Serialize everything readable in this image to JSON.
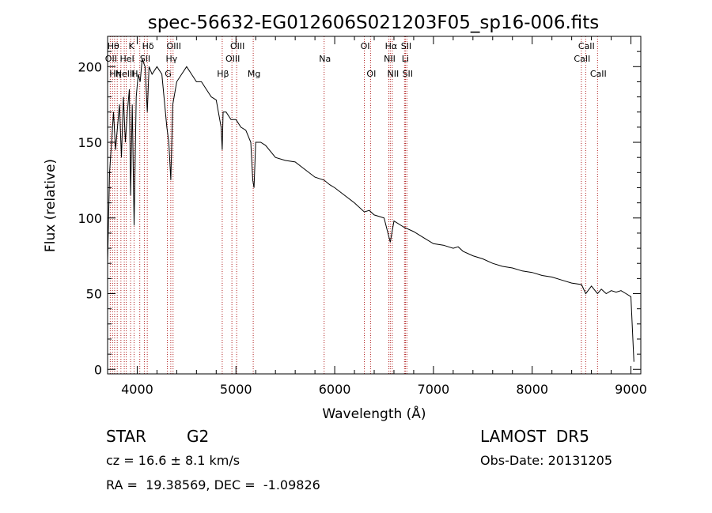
{
  "chart_data": {
    "type": "line",
    "title": "spec-56632-EG012606S021203F05_sp16-006.fits",
    "xlabel": "Wavelength (Å)",
    "ylabel": "Flux (relative)",
    "xlim": [
      3700,
      9100
    ],
    "ylim": [
      -3,
      220
    ],
    "x_ticks": [
      4000,
      5000,
      6000,
      7000,
      8000,
      9000
    ],
    "y_ticks": [
      0,
      50,
      100,
      150,
      200
    ],
    "grid": false,
    "line_color": "#000000",
    "marker_color": "#b22222",
    "series": [
      {
        "x": [
          3700,
          3720,
          3740,
          3760,
          3780,
          3800,
          3820,
          3840,
          3860,
          3880,
          3900,
          3920,
          3933,
          3950,
          3968,
          3990,
          4010,
          4030,
          4050,
          4080,
          4102,
          4120,
          4150,
          4200,
          4250,
          4300,
          4320,
          4340,
          4360,
          4400,
          4450,
          4500,
          4550,
          4600,
          4650,
          4700,
          4750,
          4800,
          4850,
          4861,
          4870,
          4900,
          4950,
          5000,
          5050,
          5100,
          5150,
          5170,
          5183,
          5200,
          5250,
          5300,
          5400,
          5500,
          5600,
          5700,
          5800,
          5893,
          5950,
          6000,
          6100,
          6200,
          6300,
          6350,
          6400,
          6500,
          6563,
          6600,
          6700,
          6800,
          6900,
          7000,
          7100,
          7200,
          7250,
          7300,
          7400,
          7500,
          7600,
          7700,
          7800,
          7900,
          8000,
          8100,
          8200,
          8300,
          8400,
          8500,
          8542,
          8600,
          8662,
          8700,
          8750,
          8800,
          8850,
          8900,
          8950,
          9000,
          9030
        ],
        "y": [
          70,
          130,
          150,
          170,
          145,
          160,
          175,
          140,
          180,
          150,
          170,
          185,
          115,
          175,
          95,
          180,
          195,
          190,
          205,
          200,
          170,
          200,
          195,
          200,
          195,
          160,
          150,
          125,
          175,
          190,
          195,
          200,
          195,
          190,
          190,
          185,
          180,
          178,
          160,
          145,
          170,
          170,
          165,
          165,
          160,
          158,
          150,
          125,
          120,
          150,
          150,
          148,
          140,
          138,
          137,
          132,
          127,
          125,
          122,
          120,
          115,
          110,
          104,
          105,
          102,
          100,
          84,
          98,
          94,
          91,
          87,
          83,
          82,
          80,
          81,
          78,
          75,
          73,
          70,
          68,
          67,
          65,
          64,
          62,
          61,
          59,
          57,
          56,
          50,
          55,
          50,
          53,
          50,
          52,
          51,
          52,
          50,
          48,
          5
        ]
      }
    ],
    "lines": [
      {
        "wl": 3727,
        "label": "OII",
        "row": 2
      },
      {
        "wl": 3750,
        "label": "Hθ",
        "row": 1
      },
      {
        "wl": 3771,
        "label": "Hη",
        "row": 3
      },
      {
        "wl": 3798,
        "label": "",
        "row": 0
      },
      {
        "wl": 3835,
        "label": "",
        "row": 0
      },
      {
        "wl": 3869,
        "label": "NeIII",
        "row": 3
      },
      {
        "wl": 3889,
        "label": "HeI",
        "row": 2
      },
      {
        "wl": 3933,
        "label": "K",
        "row": 1
      },
      {
        "wl": 3968,
        "label": "H",
        "row": 3
      },
      {
        "wl": 4026,
        "label": "",
        "row": 0
      },
      {
        "wl": 4072,
        "label": "SII",
        "row": 2
      },
      {
        "wl": 4102,
        "label": "Hδ",
        "row": 1
      },
      {
        "wl": 4305,
        "label": "G",
        "row": 3
      },
      {
        "wl": 4340,
        "label": "Hγ",
        "row": 2
      },
      {
        "wl": 4363,
        "label": "OIII",
        "row": 1
      },
      {
        "wl": 4861,
        "label": "Hβ",
        "row": 3
      },
      {
        "wl": 4959,
        "label": "OIII",
        "row": 2
      },
      {
        "wl": 5007,
        "label": "OIII",
        "row": 1
      },
      {
        "wl": 5175,
        "label": "Mg",
        "row": 3
      },
      {
        "wl": 5893,
        "label": "Na",
        "row": 2
      },
      {
        "wl": 6300,
        "label": "OI",
        "row": 1
      },
      {
        "wl": 6363,
        "label": "OI",
        "row": 3
      },
      {
        "wl": 6548,
        "label": "NII",
        "row": 2
      },
      {
        "wl": 6563,
        "label": "Hα",
        "row": 1
      },
      {
        "wl": 6583,
        "label": "NII",
        "row": 3
      },
      {
        "wl": 6707,
        "label": "Li",
        "row": 2
      },
      {
        "wl": 6716,
        "label": "SII",
        "row": 1
      },
      {
        "wl": 6731,
        "label": "SII",
        "row": 3
      },
      {
        "wl": 8498,
        "label": "CaII",
        "row": 2
      },
      {
        "wl": 8542,
        "label": "CaII",
        "row": 1
      },
      {
        "wl": 8662,
        "label": "CaII",
        "row": 3
      }
    ]
  },
  "footer": {
    "object_class": "STAR",
    "subclass": "G2",
    "survey": "LAMOST  DR5",
    "cz": "cz = 16.6 ± 8.1 km/s",
    "obs_date": "Obs-Date: 20131205",
    "coords": "RA =  19.38569, DEC =  -1.09826"
  }
}
